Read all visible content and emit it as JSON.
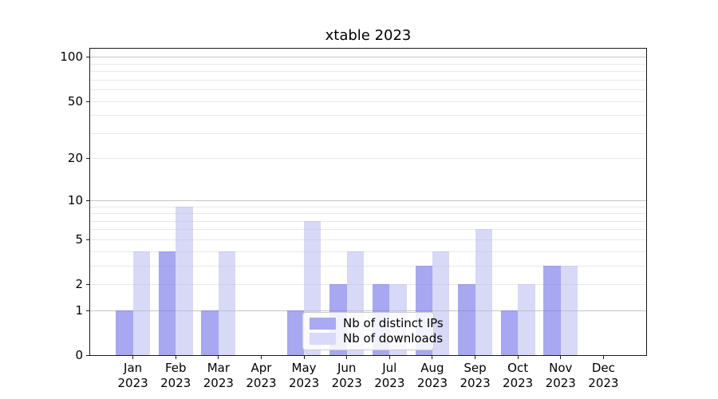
{
  "title": "xtable 2023",
  "chart_data": {
    "type": "bar",
    "title": "xtable 2023",
    "months": [
      "Jan",
      "Feb",
      "Mar",
      "Apr",
      "May",
      "Jun",
      "Jul",
      "Aug",
      "Sep",
      "Oct",
      "Nov",
      "Dec"
    ],
    "year": "2023",
    "categories": [
      "Jan 2023",
      "Feb 2023",
      "Mar 2023",
      "Apr 2023",
      "May 2023",
      "Jun 2023",
      "Jul 2023",
      "Aug 2023",
      "Sep 2023",
      "Oct 2023",
      "Nov 2023",
      "Dec 2023"
    ],
    "series": [
      {
        "name": "Nb of distinct IPs",
        "color": "rgba(115,115,235,0.63)",
        "legend_swatch": "#a9a9f4",
        "values": [
          1,
          4,
          1,
          0,
          1,
          2,
          2,
          3,
          2,
          1,
          3,
          0
        ]
      },
      {
        "name": "Nb of downloads",
        "color": "rgba(180,180,240,0.52)",
        "legend_swatch": "#d9d9f9",
        "values": [
          4,
          9,
          4,
          0,
          7,
          4,
          2,
          4,
          6,
          2,
          3,
          0
        ]
      }
    ],
    "xlabel": "",
    "ylabel": "",
    "yscale": "log1p",
    "ylim": [
      0,
      115
    ],
    "y_tick_values": [
      0,
      1,
      2,
      5,
      10,
      20,
      50,
      100
    ],
    "y_major_gridlines": [
      1,
      10,
      100
    ],
    "y_minor_gridlines": [
      2,
      3,
      4,
      5,
      6,
      7,
      8,
      9,
      20,
      30,
      40,
      50,
      60,
      70,
      80,
      90
    ],
    "grid_major_color": "#c6c6c6",
    "grid_minor_color": "#e9e9e9",
    "grid": "on",
    "legend_position": "lower center"
  }
}
